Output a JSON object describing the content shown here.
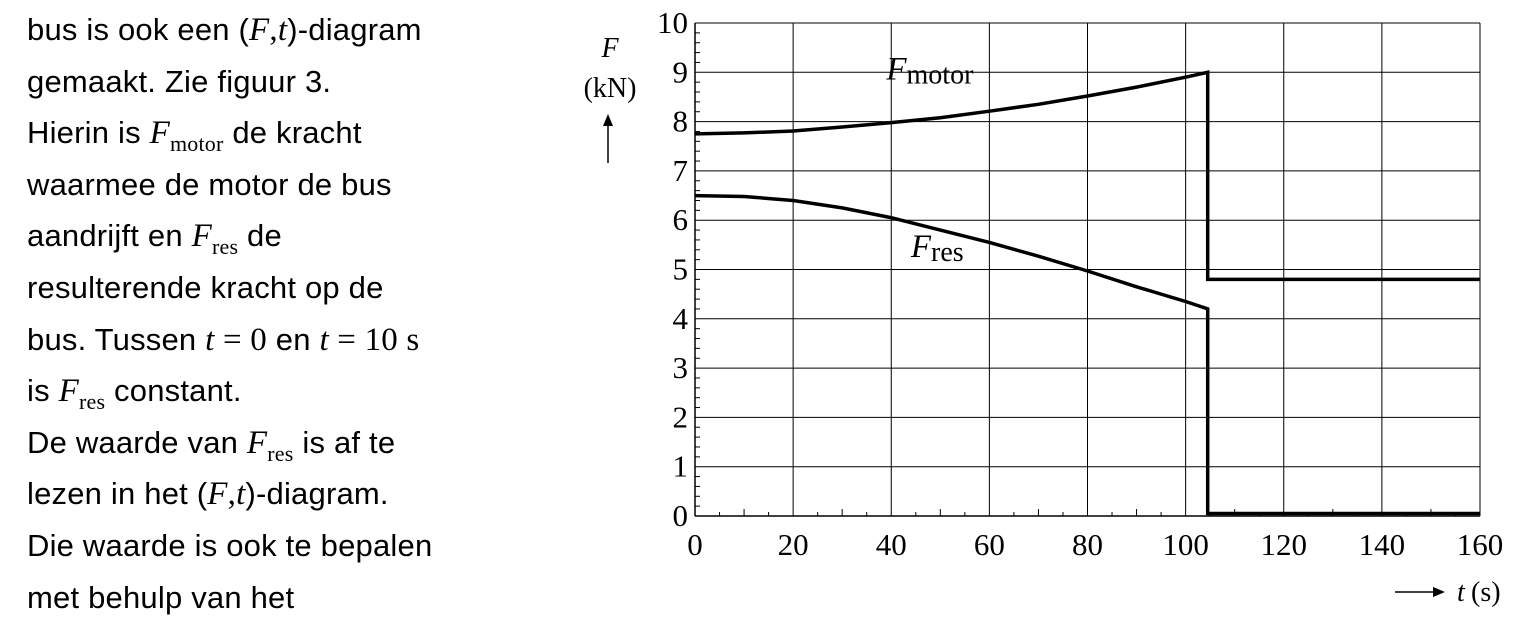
{
  "text": {
    "l1_a": "bus is ook een (",
    "l1_F": "F",
    "l1_comma": ",",
    "l1_t": "t",
    "l1_b": ")-diagram",
    "l2": "gemaakt. Zie figuur 3.",
    "l3_a": "Hierin is ",
    "l3_F": "F",
    "l3_sub": "motor",
    "l3_b": " de kracht",
    "l4": "waarmee de motor de bus",
    "l5_a": "aandrijft en ",
    "l5_F": "F",
    "l5_sub": "res",
    "l5_b": " de",
    "l6": "resulterende kracht op de",
    "l7_a": "bus. Tussen ",
    "l7_t1": "t",
    "l7_eq1": " = 0",
    "l7_en": " en ",
    "l7_t2": "t",
    "l7_eq2": " = 10 s",
    "l8_a": "is ",
    "l8_F": "F",
    "l8_sub": "res",
    "l8_b": " constant.",
    "l9_a": "De waarde van ",
    "l9_F": "F",
    "l9_sub": "res",
    "l9_b": " is af te",
    "l10_a": "lezen in het (",
    "l10_F": "F",
    "l10_comma": ",",
    "l10_t": "t",
    "l10_b": ")-diagram.",
    "l11": "Die waarde is ook te bepalen",
    "l12": "met behulp van het"
  },
  "chart_data": {
    "type": "line",
    "title": "",
    "ylabel_symbol": "F",
    "ylabel_unit": "(kN)",
    "xlabel_symbol": "t",
    "xlabel_unit": "(s)",
    "xlim": [
      0,
      160
    ],
    "ylim": [
      0,
      10
    ],
    "x_ticks": [
      "0",
      "20",
      "40",
      "60",
      "80",
      "100",
      "120",
      "140",
      "160"
    ],
    "y_ticks": [
      "0",
      "1",
      "2",
      "3",
      "4",
      "5",
      "6",
      "7",
      "8",
      "9",
      "10"
    ],
    "grid": true,
    "series": [
      {
        "name_symbol": "F",
        "name_sub": "motor",
        "x": [
          0,
          10,
          20,
          30,
          40,
          50,
          60,
          70,
          80,
          90,
          100,
          104.5,
          104.5,
          110,
          120,
          130,
          140,
          150,
          160
        ],
        "y": [
          7.75,
          7.77,
          7.81,
          7.89,
          7.98,
          8.08,
          8.21,
          8.35,
          8.52,
          8.7,
          8.9,
          9.0,
          4.8,
          4.8,
          4.8,
          4.8,
          4.8,
          4.8,
          4.8
        ]
      },
      {
        "name_symbol": "F",
        "name_sub": "res",
        "x": [
          0,
          10,
          20,
          30,
          40,
          50,
          60,
          70,
          80,
          90,
          100,
          104.5,
          104.5,
          110,
          120,
          130,
          140,
          150,
          160
        ],
        "y": [
          6.5,
          6.48,
          6.4,
          6.25,
          6.05,
          5.8,
          5.55,
          5.27,
          4.97,
          4.65,
          4.35,
          4.2,
          0.05,
          0.05,
          0.05,
          0.05,
          0.05,
          0.05,
          0.05
        ]
      }
    ]
  }
}
